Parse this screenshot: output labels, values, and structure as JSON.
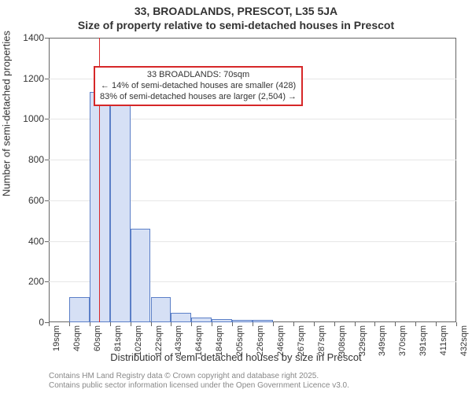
{
  "chart": {
    "title": "33, BROADLANDS, PRESCOT, L35 5JA",
    "subtitle": "Size of property relative to semi-detached houses in Prescot",
    "ylabel": "Number of semi-detached properties",
    "xlabel": "Distribution of semi-detached houses by size in Prescot",
    "attribution1": "Contains HM Land Registry data © Crown copyright and database right 2025.",
    "attribution2": "Contains public sector information licensed under the Open Government Licence v3.0.",
    "background_color": "#ffffff",
    "grid_color": "#e6e6e6",
    "axis_color": "#666666",
    "text_color": "#333333",
    "title_fontsize": 14,
    "label_fontsize": 13,
    "tick_fontsize_x": 11,
    "tick_fontsize_y": 12,
    "annot_fontsize": 11,
    "attrib_fontsize": 10,
    "attrib_color": "#888888",
    "ylim": [
      0,
      1400
    ],
    "ytick_step": 200,
    "x_categories": [
      "19sqm",
      "40sqm",
      "60sqm",
      "81sqm",
      "102sqm",
      "122sqm",
      "143sqm",
      "164sqm",
      "184sqm",
      "205sqm",
      "226sqm",
      "246sqm",
      "267sqm",
      "287sqm",
      "308sqm",
      "329sqm",
      "349sqm",
      "370sqm",
      "391sqm",
      "411sqm",
      "432sqm"
    ],
    "bars": {
      "values": [
        0,
        125,
        1135,
        1100,
        460,
        125,
        45,
        25,
        15,
        10,
        10,
        0,
        0,
        0,
        0,
        0,
        0,
        0,
        0,
        0
      ],
      "fill_color": "#d6e0f5",
      "border_color": "#5b7fc7",
      "border_width": 1
    },
    "marker": {
      "position_sqm": 70,
      "color": "#d62728",
      "width": 1
    },
    "annotation": {
      "line1": "33 BROADLANDS: 70sqm",
      "line2": "← 14% of semi-detached houses are smaller (428)",
      "line3": "83% of semi-detached houses are larger (2,504) →",
      "border_color": "#d62728",
      "bg_color": "#ffffff",
      "top_y_value": 1260,
      "left_category_index": 2.2
    }
  }
}
